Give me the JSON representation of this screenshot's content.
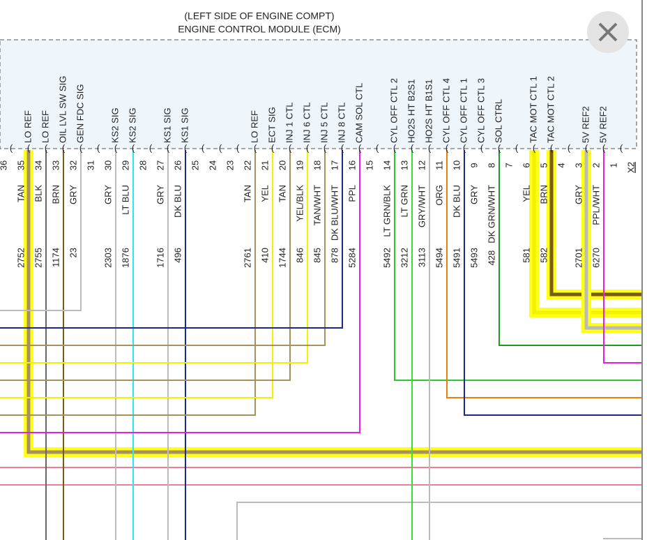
{
  "header": {
    "lines": [
      "(LEFT SIDE OF ENGINE COMPT)",
      "ENGINE CONTROL MODULE (ECM)"
    ]
  },
  "connector": "X2",
  "pins": [
    {
      "num": 36
    },
    {
      "num": 35,
      "signal": "LO REF",
      "color": "TAN",
      "circuit": 2752
    },
    {
      "num": 34,
      "signal": "LO REF",
      "color": "BLK",
      "circuit": 2755
    },
    {
      "num": 33,
      "signal": "OIL LVL SW SIG",
      "color": "BRN",
      "circuit": 1174
    },
    {
      "num": 32,
      "signal": "GEN FDC SIG",
      "color": "GRY",
      "circuit": 23
    },
    {
      "num": 31
    },
    {
      "num": 30,
      "signal": "KS2 SIG",
      "color": "GRY",
      "circuit": 2303
    },
    {
      "num": 29,
      "signal": "KS2 SIG",
      "color": "LT BLU",
      "circuit": 1876
    },
    {
      "num": 28
    },
    {
      "num": 27,
      "signal": "KS1 SIG",
      "color": "GRY",
      "circuit": 1716
    },
    {
      "num": 26,
      "signal": "KS1 SIG",
      "color": "DK BLU",
      "circuit": 496
    },
    {
      "num": 25
    },
    {
      "num": 24
    },
    {
      "num": 23
    },
    {
      "num": 22,
      "signal": "LO REF",
      "color": "TAN",
      "circuit": 2761
    },
    {
      "num": 21,
      "signal": "ECT SIG",
      "color": "YEL",
      "circuit": 410
    },
    {
      "num": 20,
      "signal": "INJ 1 CTL",
      "color": "TAN",
      "circuit": 1744
    },
    {
      "num": 19,
      "signal": "INJ 6 CTL",
      "color": "YEL/BLK",
      "circuit": 846
    },
    {
      "num": 18,
      "signal": "INJ 5 CTL",
      "color": "TAN/WHT",
      "circuit": 845
    },
    {
      "num": 17,
      "signal": "INJ 8 CTL",
      "color": "DK BLU/WHT",
      "circuit": 878
    },
    {
      "num": 16,
      "signal": "CAM SOL CTL",
      "color": "PPL",
      "circuit": 5284
    },
    {
      "num": 15
    },
    {
      "num": 14,
      "signal": "CYL OFF CTL 2",
      "color": "LT GRN/BLK",
      "circuit": 5492
    },
    {
      "num": 13,
      "signal": "HO2S HT B2S1",
      "color": "LT GRN",
      "circuit": 3212
    },
    {
      "num": 12,
      "signal": "HO2S HT B1S1",
      "color": "GRY/WHT",
      "circuit": 3113
    },
    {
      "num": 11,
      "signal": "CYL OFF CTL 4",
      "color": "ORG",
      "circuit": 5494
    },
    {
      "num": 10,
      "signal": "CYL OFF CTL 1",
      "color": "DK BLU",
      "circuit": 5491
    },
    {
      "num": 9,
      "signal": "CYL OFF CTL 3",
      "color": "GRY",
      "circuit": 5493
    },
    {
      "num": 8,
      "signal": "SOL CTRL",
      "color": "DK GRN/WHT",
      "circuit": 428
    },
    {
      "num": 7
    },
    {
      "num": 6,
      "signal": "TAC MOT CTL 1",
      "color": "YEL",
      "circuit": 581
    },
    {
      "num": 5,
      "signal": "TAC MOT CTL 2",
      "color": "BRN",
      "circuit": 582
    },
    {
      "num": 4
    },
    {
      "num": 3,
      "signal": "5V REF2",
      "color": "GRY",
      "circuit": 2701
    },
    {
      "num": 2,
      "signal": "5V REF2",
      "color": "PPL/WHT",
      "circuit": 6270
    },
    {
      "num": 1
    }
  ]
}
